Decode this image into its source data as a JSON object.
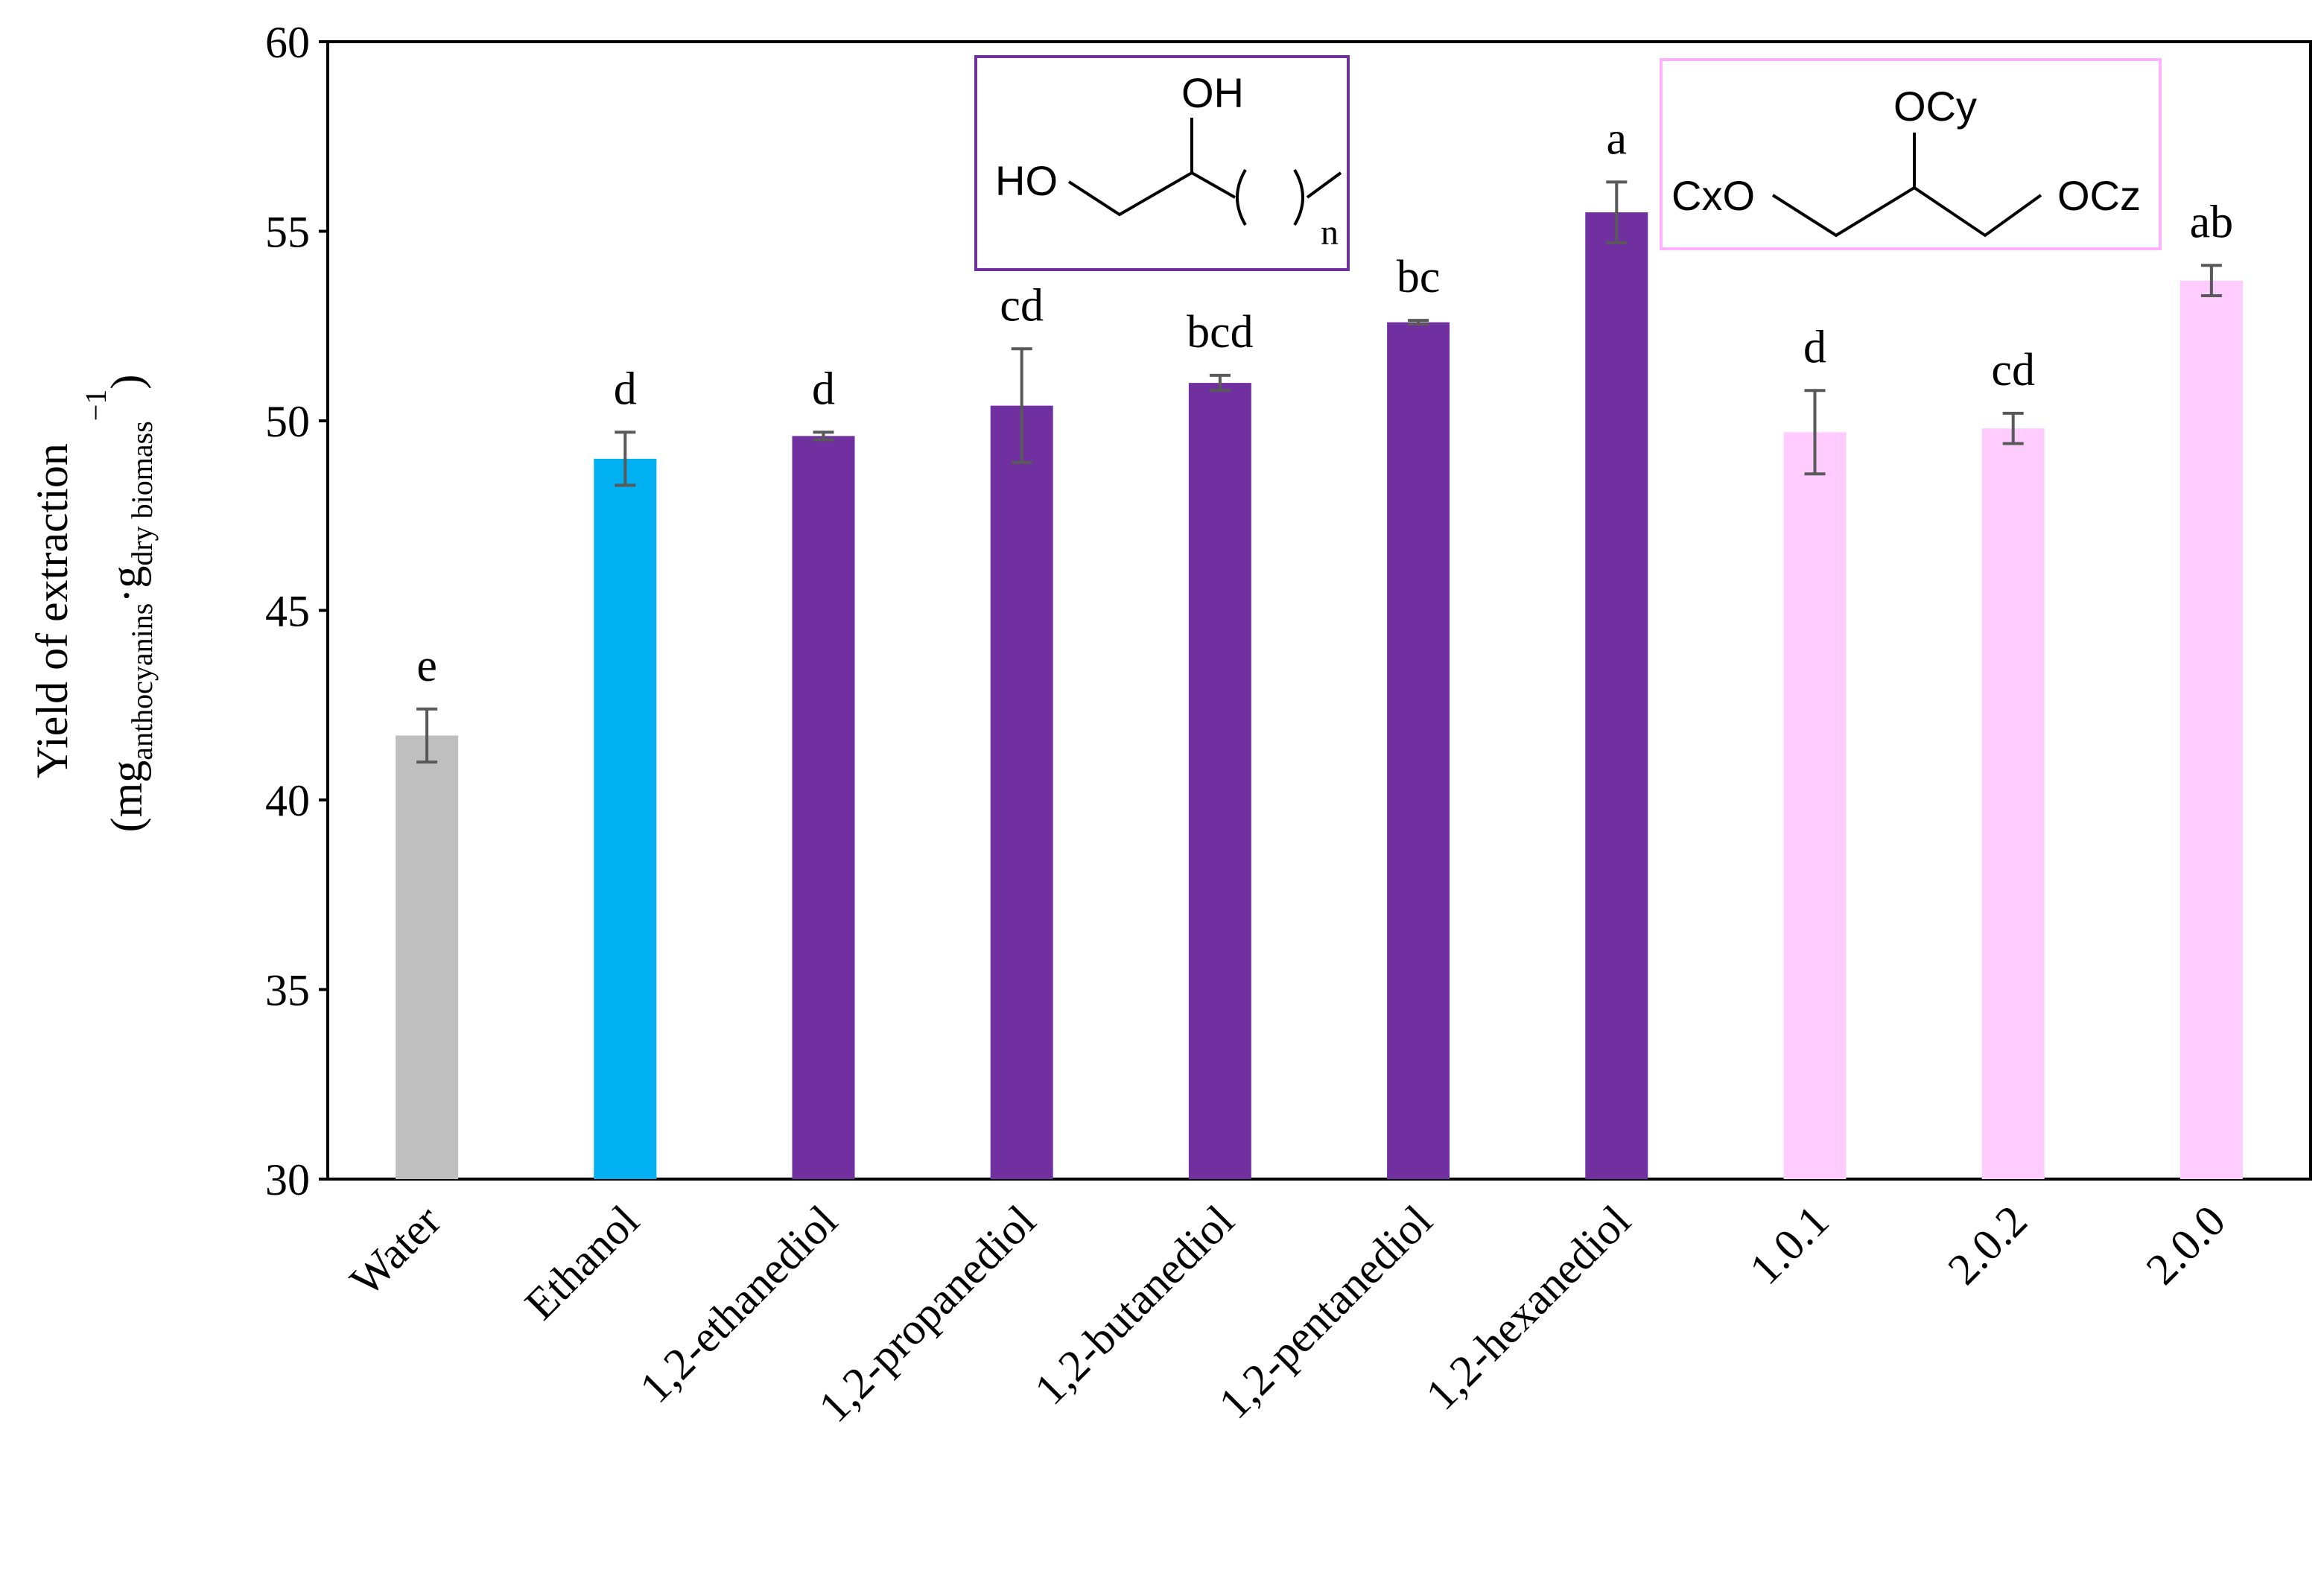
{
  "chart_data": {
    "type": "bar",
    "categories": [
      "Water",
      "Ethanol",
      "1,2-ethanediol",
      "1,2-propanediol",
      "1,2-butanediol",
      "1,2-pentanediol",
      "1,2-hexanediol",
      "1.0.1",
      "2.0.2",
      "2.0.0"
    ],
    "values": [
      41.7,
      49.0,
      49.6,
      50.4,
      51.0,
      52.6,
      55.5,
      49.7,
      49.8,
      53.7
    ],
    "errors": [
      0.7,
      0.7,
      0.1,
      1.5,
      0.2,
      0.05,
      0.8,
      1.1,
      0.4,
      0.4
    ],
    "significance_letters": [
      "e",
      "d",
      "d",
      "cd",
      "bcd",
      "bc",
      "a",
      "d",
      "cd",
      "ab"
    ],
    "bar_colors": [
      "#BFBFBF",
      "#00B0F0",
      "#7030A0",
      "#7030A0",
      "#7030A0",
      "#7030A0",
      "#7030A0",
      "#FFCCFF",
      "#FFCCFF",
      "#FFCCFF"
    ],
    "ylim": [
      30,
      60
    ],
    "yticks": [
      30,
      35,
      40,
      45,
      50,
      55,
      60
    ],
    "ylabel_main": "Yield of extraction",
    "ylabel_paren_open": "(",
    "ylabel_mg": "mg",
    "ylabel_sub_anthocyanins": "anthocyanins",
    "ylabel_dot": "·g",
    "ylabel_sub_dry": "dry biomass",
    "ylabel_sup": "−1",
    "ylabel_paren_close": ")",
    "grid": false
  },
  "structures": {
    "diol": {
      "border_color": "#7030A0",
      "label_oh": "OH",
      "label_ho": "HO",
      "label_n": "n"
    },
    "glycerol_ether": {
      "border_color": "#FFB3FF",
      "label_ocy": "OCy",
      "label_cxo": "CxO",
      "label_ocz": "OCz"
    }
  }
}
